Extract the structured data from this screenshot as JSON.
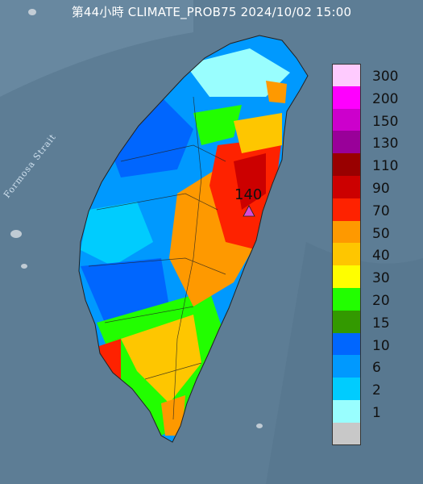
{
  "header": {
    "title": "第44小時  CLIMATE_PROB75 2024/10/02 15:00"
  },
  "map_labels": {
    "strait": "Formosa Strait",
    "peak_value": "140"
  },
  "legend": {
    "items": [
      {
        "label": "300",
        "color": "#fecbfe"
      },
      {
        "label": "200",
        "color": "#fe00fe"
      },
      {
        "label": "150",
        "color": "#cc00cc"
      },
      {
        "label": "130",
        "color": "#990099"
      },
      {
        "label": "110",
        "color": "#990000"
      },
      {
        "label": "90",
        "color": "#cc0000"
      },
      {
        "label": "70",
        "color": "#fe2200"
      },
      {
        "label": "50",
        "color": "#fe9900"
      },
      {
        "label": "40",
        "color": "#fec600"
      },
      {
        "label": "30",
        "color": "#fefe00"
      },
      {
        "label": "20",
        "color": "#22fe00"
      },
      {
        "label": "15",
        "color": "#339900"
      },
      {
        "label": "10",
        "color": "#0066fe"
      },
      {
        "label": "6",
        "color": "#0099fe"
      },
      {
        "label": "2",
        "color": "#00ccfe"
      },
      {
        "label": "1",
        "color": "#99fefe"
      },
      {
        "label": "",
        "color": "#c8c8c8"
      }
    ]
  },
  "colors": {
    "sea": "#5d7d95",
    "marker": "#d64cd6"
  }
}
